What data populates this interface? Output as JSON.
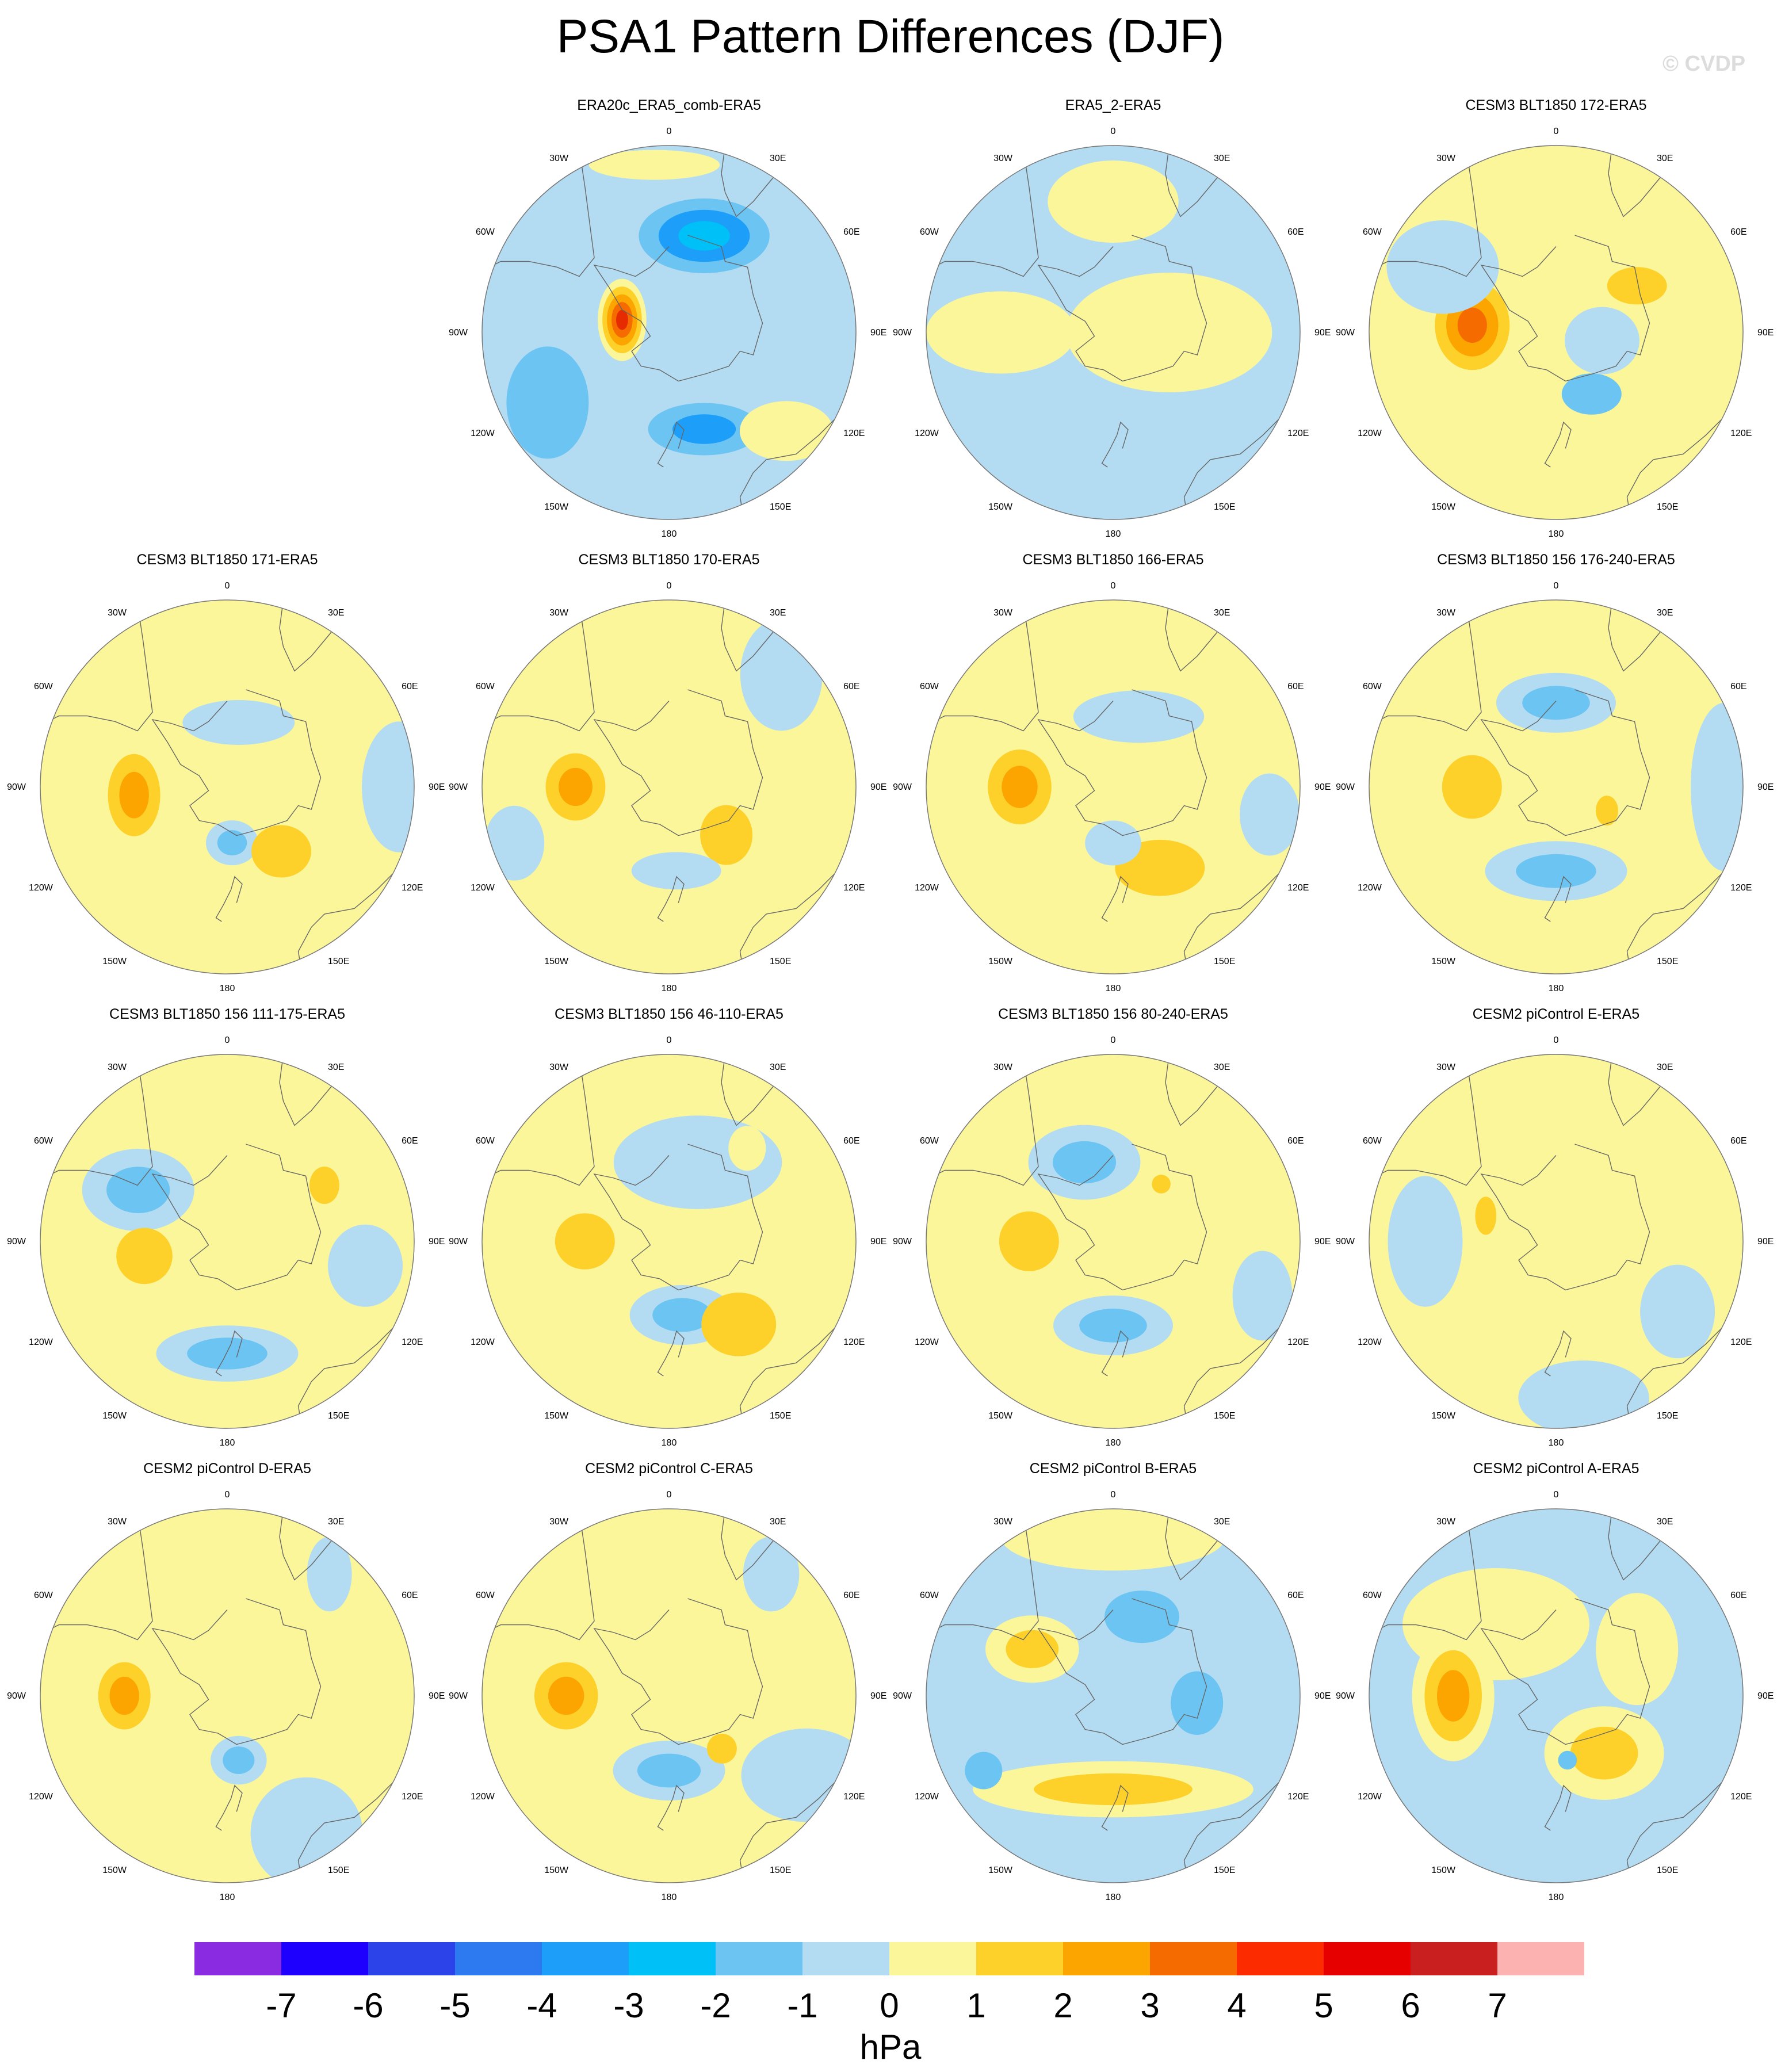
{
  "title": "PSA1 Pattern Differences (DJF)",
  "watermark": "© CVDP",
  "longitude_labels": [
    "0",
    "30E",
    "60E",
    "90E",
    "120E",
    "150E",
    "180",
    "150W",
    "120W",
    "90W",
    "60W",
    "30W"
  ],
  "panels": [
    {
      "title": "ERA20c_ERA5_comb-ERA5",
      "bg": "#b3dcf2",
      "blobs": [
        {
          "lon": -75,
          "r": 0.26,
          "rx": 0.13,
          "ry": 0.22,
          "colors": [
            "#fbf69a",
            "#fdd12a",
            "#fca500",
            "#f66b00",
            "#e62b00"
          ]
        },
        {
          "lon": 20,
          "r": 0.55,
          "rx": 0.35,
          "ry": 0.2,
          "colors": [
            "#6cc4f3",
            "#1d9ef8",
            "#00c0f8"
          ]
        },
        {
          "lon": 160,
          "r": 0.55,
          "rx": 0.3,
          "ry": 0.14,
          "colors": [
            "#6cc4f3",
            "#1d9ef8"
          ]
        },
        {
          "lon": -120,
          "r": 0.75,
          "rx": 0.22,
          "ry": 0.3,
          "colors": [
            "#6cc4f3"
          ]
        },
        {
          "lon": 130,
          "r": 0.82,
          "rx": 0.25,
          "ry": 0.16,
          "colors": [
            "#fbf69a"
          ]
        },
        {
          "lon": -5,
          "r": 0.9,
          "rx": 0.35,
          "ry": 0.08,
          "colors": [
            "#fbf69a"
          ]
        }
      ]
    },
    {
      "title": "ERA5_2-ERA5",
      "bg": "#b3dcf2",
      "blobs": [
        {
          "lon": 90,
          "r": 0.3,
          "rx": 0.55,
          "ry": 0.32,
          "colors": [
            "#fbf69a"
          ]
        },
        {
          "lon": -90,
          "r": 0.6,
          "rx": 0.4,
          "ry": 0.22,
          "colors": [
            "#fbf69a"
          ]
        },
        {
          "lon": 0,
          "r": 0.7,
          "rx": 0.35,
          "ry": 0.22,
          "colors": [
            "#fbf69a"
          ]
        }
      ]
    },
    {
      "title": "CESM3 BLT1850 172-ERA5",
      "bg": "#fbf69a",
      "blobs": [
        {
          "lon": -85,
          "r": 0.45,
          "rx": 0.2,
          "ry": 0.24,
          "colors": [
            "#fdd12a",
            "#fca500",
            "#f66b00"
          ]
        },
        {
          "lon": 150,
          "r": 0.38,
          "rx": 0.16,
          "ry": 0.11,
          "colors": [
            "#6cc4f3"
          ]
        },
        {
          "lon": 60,
          "r": 0.5,
          "rx": 0.16,
          "ry": 0.1,
          "colors": [
            "#fdd12a"
          ]
        },
        {
          "lon": -60,
          "r": 0.7,
          "rx": 0.3,
          "ry": 0.25,
          "colors": [
            "#b3dcf2"
          ]
        },
        {
          "lon": 100,
          "r": 0.25,
          "rx": 0.2,
          "ry": 0.18,
          "colors": [
            "#b3dcf2"
          ]
        }
      ]
    },
    {
      "title": "CESM3 BLT1850 171-ERA5",
      "bg": "#fbf69a",
      "blobs": [
        {
          "lon": -95,
          "r": 0.5,
          "rx": 0.14,
          "ry": 0.22,
          "colors": [
            "#fdd12a",
            "#fca500"
          ]
        },
        {
          "lon": 175,
          "r": 0.3,
          "rx": 0.14,
          "ry": 0.12,
          "colors": [
            "#b3dcf2",
            "#6cc4f3"
          ]
        },
        {
          "lon": 140,
          "r": 0.45,
          "rx": 0.16,
          "ry": 0.14,
          "colors": [
            "#fdd12a"
          ]
        },
        {
          "lon": 10,
          "r": 0.35,
          "rx": 0.3,
          "ry": 0.12,
          "colors": [
            "#b3dcf2"
          ]
        },
        {
          "lon": 90,
          "r": 0.92,
          "rx": 0.2,
          "ry": 0.35,
          "colors": [
            "#b3dcf2"
          ]
        }
      ]
    },
    {
      "title": "CESM3 BLT1850 170-ERA5",
      "bg": "#fbf69a",
      "blobs": [
        {
          "lon": -90,
          "r": 0.5,
          "rx": 0.16,
          "ry": 0.18,
          "colors": [
            "#fdd12a",
            "#fca500"
          ]
        },
        {
          "lon": 130,
          "r": 0.4,
          "rx": 0.14,
          "ry": 0.16,
          "colors": [
            "#fdd12a"
          ]
        },
        {
          "lon": 175,
          "r": 0.45,
          "rx": 0.24,
          "ry": 0.1,
          "colors": [
            "#b3dcf2"
          ]
        },
        {
          "lon": 45,
          "r": 0.85,
          "rx": 0.22,
          "ry": 0.3,
          "colors": [
            "#b3dcf2"
          ]
        },
        {
          "lon": -110,
          "r": 0.88,
          "rx": 0.16,
          "ry": 0.2,
          "colors": [
            "#b3dcf2"
          ]
        }
      ]
    },
    {
      "title": "CESM3 BLT1850 166-ERA5",
      "bg": "#fbf69a",
      "blobs": [
        {
          "lon": -90,
          "r": 0.5,
          "rx": 0.17,
          "ry": 0.2,
          "colors": [
            "#fdd12a",
            "#fca500"
          ]
        },
        {
          "lon": 150,
          "r": 0.5,
          "rx": 0.24,
          "ry": 0.15,
          "colors": [
            "#fdd12a"
          ]
        },
        {
          "lon": 180,
          "r": 0.3,
          "rx": 0.15,
          "ry": 0.12,
          "colors": [
            "#b3dcf2"
          ]
        },
        {
          "lon": 20,
          "r": 0.4,
          "rx": 0.35,
          "ry": 0.14,
          "colors": [
            "#b3dcf2"
          ]
        },
        {
          "lon": 100,
          "r": 0.85,
          "rx": 0.16,
          "ry": 0.22,
          "colors": [
            "#b3dcf2"
          ]
        }
      ]
    },
    {
      "title": "CESM3 BLT1850 156 176-240-ERA5",
      "bg": "#fbf69a",
      "blobs": [
        {
          "lon": -90,
          "r": 0.45,
          "rx": 0.16,
          "ry": 0.17,
          "colors": [
            "#fdd12a"
          ]
        },
        {
          "lon": 0,
          "r": 0.45,
          "rx": 0.32,
          "ry": 0.16,
          "colors": [
            "#b3dcf2",
            "#6cc4f3"
          ]
        },
        {
          "lon": 180,
          "r": 0.45,
          "rx": 0.38,
          "ry": 0.16,
          "colors": [
            "#b3dcf2",
            "#6cc4f3"
          ]
        },
        {
          "lon": 115,
          "r": 0.3,
          "rx": 0.06,
          "ry": 0.08,
          "colors": [
            "#fdd12a"
          ]
        },
        {
          "lon": 90,
          "r": 0.9,
          "rx": 0.18,
          "ry": 0.45,
          "colors": [
            "#b3dcf2"
          ]
        }
      ]
    },
    {
      "title": "CESM3 BLT1850 156 111-175-ERA5",
      "bg": "#fbf69a",
      "blobs": [
        {
          "lon": -60,
          "r": 0.55,
          "rx": 0.3,
          "ry": 0.22,
          "colors": [
            "#b3dcf2",
            "#6cc4f3"
          ]
        },
        {
          "lon": -100,
          "r": 0.45,
          "rx": 0.15,
          "ry": 0.15,
          "colors": [
            "#fdd12a"
          ]
        },
        {
          "lon": 180,
          "r": 0.6,
          "rx": 0.38,
          "ry": 0.15,
          "colors": [
            "#b3dcf2",
            "#6cc4f3"
          ]
        },
        {
          "lon": 60,
          "r": 0.6,
          "rx": 0.08,
          "ry": 0.1,
          "colors": [
            "#fdd12a"
          ]
        },
        {
          "lon": 100,
          "r": 0.75,
          "rx": 0.2,
          "ry": 0.22,
          "colors": [
            "#b3dcf2"
          ]
        }
      ]
    },
    {
      "title": "CESM3 BLT1850 156 46-110-ERA5",
      "bg": "#fbf69a",
      "blobs": [
        {
          "lon": -90,
          "r": 0.45,
          "rx": 0.16,
          "ry": 0.15,
          "colors": [
            "#fdd12a"
          ]
        },
        {
          "lon": 170,
          "r": 0.4,
          "rx": 0.28,
          "ry": 0.16,
          "colors": [
            "#b3dcf2",
            "#6cc4f3"
          ]
        },
        {
          "lon": 140,
          "r": 0.58,
          "rx": 0.2,
          "ry": 0.17,
          "colors": [
            "#fdd12a"
          ]
        },
        {
          "lon": 20,
          "r": 0.45,
          "rx": 0.45,
          "ry": 0.25,
          "colors": [
            "#b3dcf2"
          ]
        },
        {
          "lon": 40,
          "r": 0.65,
          "rx": 0.1,
          "ry": 0.12,
          "colors": [
            "#fbf69a"
          ]
        }
      ]
    },
    {
      "title": "CESM3 BLT1850 156 80-240-ERA5",
      "bg": "#fbf69a",
      "blobs": [
        {
          "lon": -90,
          "r": 0.45,
          "rx": 0.16,
          "ry": 0.16,
          "colors": [
            "#fdd12a"
          ]
        },
        {
          "lon": 180,
          "r": 0.45,
          "rx": 0.32,
          "ry": 0.16,
          "colors": [
            "#b3dcf2",
            "#6cc4f3"
          ]
        },
        {
          "lon": -20,
          "r": 0.45,
          "rx": 0.3,
          "ry": 0.2,
          "colors": [
            "#b3dcf2",
            "#6cc4f3"
          ]
        },
        {
          "lon": 40,
          "r": 0.4,
          "rx": 0.05,
          "ry": 0.05,
          "colors": [
            "#fdd12a"
          ]
        },
        {
          "lon": 110,
          "r": 0.85,
          "rx": 0.16,
          "ry": 0.24,
          "colors": [
            "#b3dcf2"
          ]
        }
      ]
    },
    {
      "title": "CESM2 piControl E-ERA5",
      "bg": "#fbf69a",
      "blobs": [
        {
          "lon": -90,
          "r": 0.7,
          "rx": 0.2,
          "ry": 0.35,
          "colors": [
            "#b3dcf2"
          ]
        },
        {
          "lon": 170,
          "r": 0.85,
          "rx": 0.35,
          "ry": 0.2,
          "colors": [
            "#b3dcf2"
          ]
        },
        {
          "lon": 120,
          "r": 0.75,
          "rx": 0.2,
          "ry": 0.25,
          "colors": [
            "#b3dcf2"
          ]
        },
        {
          "lon": -70,
          "r": 0.4,
          "rx": 0.1,
          "ry": 0.18,
          "colors": [
            "#fbf69a",
            "#fdd12a"
          ]
        }
      ]
    },
    {
      "title": "CESM2 piControl D-ERA5",
      "bg": "#fbf69a",
      "blobs": [
        {
          "lon": -90,
          "r": 0.55,
          "rx": 0.14,
          "ry": 0.18,
          "colors": [
            "#fdd12a",
            "#fca500"
          ]
        },
        {
          "lon": 170,
          "r": 0.35,
          "rx": 0.15,
          "ry": 0.13,
          "colors": [
            "#b3dcf2",
            "#6cc4f3"
          ]
        },
        {
          "lon": 150,
          "r": 0.85,
          "rx": 0.3,
          "ry": 0.3,
          "colors": [
            "#b3dcf2"
          ]
        },
        {
          "lon": 40,
          "r": 0.85,
          "rx": 0.12,
          "ry": 0.2,
          "colors": [
            "#b3dcf2"
          ]
        }
      ]
    },
    {
      "title": "CESM2 piControl C-ERA5",
      "bg": "#fbf69a",
      "blobs": [
        {
          "lon": -90,
          "r": 0.55,
          "rx": 0.17,
          "ry": 0.18,
          "colors": [
            "#fdd12a",
            "#fca500"
          ]
        },
        {
          "lon": 180,
          "r": 0.4,
          "rx": 0.3,
          "ry": 0.16,
          "colors": [
            "#b3dcf2",
            "#6cc4f3"
          ]
        },
        {
          "lon": 135,
          "r": 0.4,
          "rx": 0.08,
          "ry": 0.08,
          "colors": [
            "#fdd12a"
          ]
        },
        {
          "lon": 120,
          "r": 0.85,
          "rx": 0.35,
          "ry": 0.25,
          "colors": [
            "#b3dcf2"
          ]
        },
        {
          "lon": 40,
          "r": 0.85,
          "rx": 0.15,
          "ry": 0.2,
          "colors": [
            "#b3dcf2"
          ]
        }
      ]
    },
    {
      "title": "CESM2 piControl B-ERA5",
      "bg": "#b3dcf2",
      "blobs": [
        {
          "lon": 180,
          "r": 0.5,
          "rx": 0.75,
          "ry": 0.15,
          "colors": [
            "#fbf69a",
            "#fdd12a"
          ]
        },
        {
          "lon": -60,
          "r": 0.5,
          "rx": 0.25,
          "ry": 0.18,
          "colors": [
            "#fbf69a",
            "#fdd12a"
          ]
        },
        {
          "lon": 0,
          "r": 0.85,
          "rx": 0.6,
          "ry": 0.18,
          "colors": [
            "#fbf69a"
          ]
        },
        {
          "lon": 20,
          "r": 0.45,
          "rx": 0.2,
          "ry": 0.14,
          "colors": [
            "#6cc4f3"
          ]
        },
        {
          "lon": 95,
          "r": 0.45,
          "rx": 0.14,
          "ry": 0.17,
          "colors": [
            "#6cc4f3"
          ]
        },
        {
          "lon": -120,
          "r": 0.8,
          "rx": 0.1,
          "ry": 0.1,
          "colors": [
            "#6cc4f3"
          ]
        }
      ]
    },
    {
      "title": "CESM2 piControl A-ERA5",
      "bg": "#b3dcf2",
      "blobs": [
        {
          "lon": -40,
          "r": 0.5,
          "rx": 0.5,
          "ry": 0.3,
          "colors": [
            "#fbf69a"
          ]
        },
        {
          "lon": -90,
          "r": 0.55,
          "rx": 0.22,
          "ry": 0.35,
          "colors": [
            "#fbf69a",
            "#fdd12a",
            "#fca500"
          ]
        },
        {
          "lon": 140,
          "r": 0.4,
          "rx": 0.32,
          "ry": 0.25,
          "colors": [
            "#fbf69a",
            "#fdd12a"
          ]
        },
        {
          "lon": 60,
          "r": 0.5,
          "rx": 0.22,
          "ry": 0.3,
          "colors": [
            "#fbf69a"
          ]
        },
        {
          "lon": 170,
          "r": 0.35,
          "rx": 0.05,
          "ry": 0.05,
          "colors": [
            "#6cc4f3"
          ]
        }
      ]
    }
  ],
  "colorbar": {
    "colors": [
      "#8a2be2",
      "#1e00ff",
      "#2b43e8",
      "#2d7af0",
      "#1d9ef8",
      "#00c0f8",
      "#6cc4f3",
      "#b3dcf2",
      "#fbf69a",
      "#fdd12a",
      "#fca500",
      "#f66b00",
      "#fc2c00",
      "#e60000",
      "#c91f1f",
      "#fdb2b2"
    ],
    "ticks": [
      "-7",
      "-6",
      "-5",
      "-4",
      "-3",
      "-2",
      "-1",
      "0",
      "1",
      "2",
      "3",
      "4",
      "5",
      "6",
      "7"
    ],
    "units": "hPa"
  }
}
